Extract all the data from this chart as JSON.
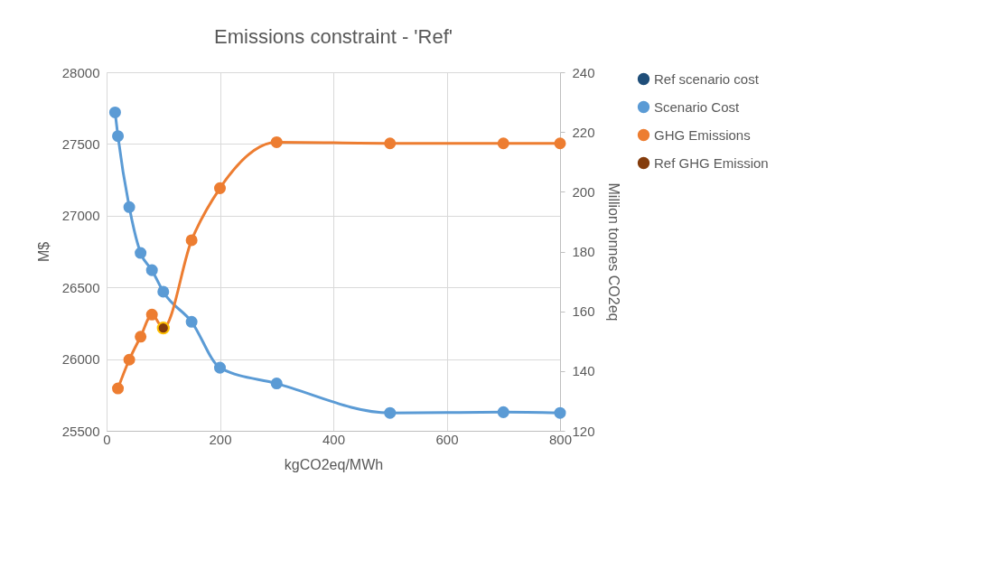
{
  "chart_data": {
    "type": "line",
    "title": "Emissions constraint - 'Ref'",
    "xlabel": "kgCO2eq/MWh",
    "ylabel": "M$",
    "y2label": "Million tonnes CO2eq",
    "xlim": [
      0,
      800
    ],
    "xticks": [
      0,
      200,
      400,
      600,
      800
    ],
    "ylim": [
      25500,
      28000
    ],
    "yticks": [
      25500,
      26000,
      26500,
      27000,
      27500,
      28000
    ],
    "y2lim": [
      120,
      240
    ],
    "y2ticks": [
      120,
      140,
      160,
      180,
      200,
      220,
      240
    ],
    "grid": true,
    "legend": "right",
    "marker": "circle",
    "line_style": "solid",
    "series": [
      {
        "name": "Ref scenario cost",
        "type": "scatter",
        "color": "#1f4e79"
      },
      {
        "name": "Scenario Cost",
        "color": "#5b9bd5",
        "x": [
          15,
          20,
          40,
          60,
          80,
          100,
          150,
          200,
          300,
          500,
          700,
          800
        ],
        "values": [
          27720,
          27555,
          27060,
          26740,
          26620,
          26470,
          26260,
          25940,
          25830,
          25625,
          25630,
          25625
        ]
      },
      {
        "name": "GHG Emissions",
        "color": "#ed7d31",
        "axis": "y2",
        "x": [
          20,
          40,
          60,
          80,
          100,
          150,
          200,
          300,
          500,
          700,
          800
        ],
        "values": [
          134.2,
          143.8,
          151.5,
          158.9,
          154.4,
          183.8,
          201.2,
          216.6,
          216.2,
          216.2,
          216.2
        ]
      },
      {
        "name": "Ref GHG Emission",
        "type": "scatter",
        "color": "#843c0c",
        "axis": "y2",
        "x": [
          100
        ],
        "values": [
          154.4
        ]
      }
    ]
  }
}
